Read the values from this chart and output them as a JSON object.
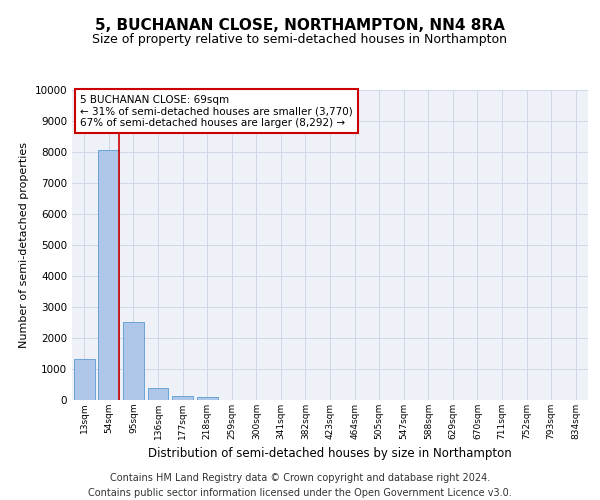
{
  "title": "5, BUCHANAN CLOSE, NORTHAMPTON, NN4 8RA",
  "subtitle": "Size of property relative to semi-detached houses in Northampton",
  "xlabel": "Distribution of semi-detached houses by size in Northampton",
  "ylabel": "Number of semi-detached properties",
  "categories": [
    "13sqm",
    "54sqm",
    "95sqm",
    "136sqm",
    "177sqm",
    "218sqm",
    "259sqm",
    "300sqm",
    "341sqm",
    "382sqm",
    "423sqm",
    "464sqm",
    "505sqm",
    "547sqm",
    "588sqm",
    "629sqm",
    "670sqm",
    "711sqm",
    "752sqm",
    "793sqm",
    "834sqm"
  ],
  "values": [
    1320,
    8050,
    2520,
    380,
    140,
    100,
    0,
    0,
    0,
    0,
    0,
    0,
    0,
    0,
    0,
    0,
    0,
    0,
    0,
    0,
    0
  ],
  "bar_color": "#aec6e8",
  "bar_edge_color": "#5b9bd5",
  "vline_x_index": 1,
  "vline_color": "#cc0000",
  "annotation_text_line1": "5 BUCHANAN CLOSE: 69sqm",
  "annotation_text_line2": "← 31% of semi-detached houses are smaller (3,770)",
  "annotation_text_line3": "67% of semi-detached houses are larger (8,292) →",
  "annotation_box_color": "#ffffff",
  "annotation_box_edge": "#cc0000",
  "ylim": [
    0,
    10000
  ],
  "yticks": [
    0,
    1000,
    2000,
    3000,
    4000,
    5000,
    6000,
    7000,
    8000,
    9000,
    10000
  ],
  "grid_color": "#d0d8e8",
  "background_color": "#eef2f8",
  "footer_line1": "Contains HM Land Registry data © Crown copyright and database right 2024.",
  "footer_line2": "Contains public sector information licensed under the Open Government Licence v3.0.",
  "title_fontsize": 11,
  "subtitle_fontsize": 9,
  "footer_fontsize": 7,
  "annotation_fontsize": 7.5,
  "ylabel_fontsize": 8,
  "xlabel_fontsize": 8.5
}
